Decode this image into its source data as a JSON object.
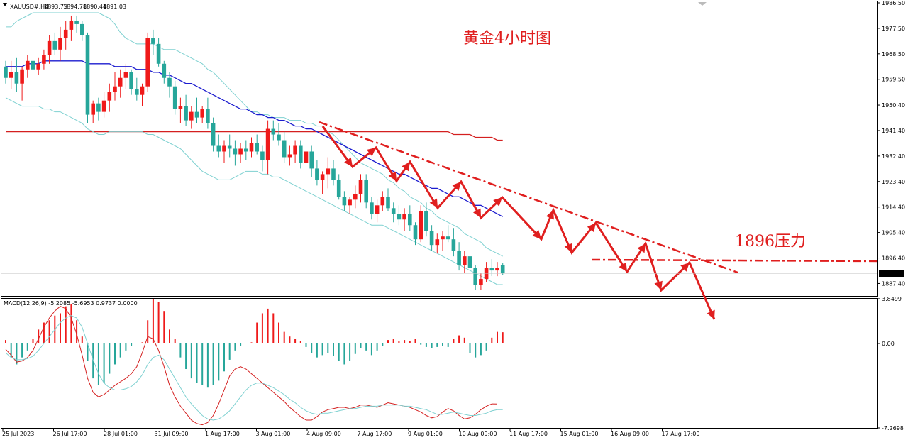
{
  "header": {
    "symbol": "XAUUSD#,H4",
    "open": "1893.79",
    "high": "1894.78",
    "low": "1890.44",
    "close": "1891.03"
  },
  "annotations": {
    "title": "黄金4小时图",
    "resistance": "1896压力"
  },
  "colors": {
    "bull": "#ef1a1a",
    "bear": "#26a69a",
    "bollinger": "#7fd1d1",
    "ma_fast": "#1c1ccf",
    "ma_slow": "#d42020",
    "annotation": "#e01f1f",
    "grid": "#c8c8c8",
    "border": "#000000",
    "price_tag_bg": "#000000",
    "price_tag_text": "#ffffff"
  },
  "chart_data": [
    {
      "type": "candlestick",
      "symbol": "XAUUSD#",
      "timeframe": "H4",
      "ylim": [
        1883,
        1987
      ],
      "y_ticks": [
        "1986.50",
        "1977.50",
        "1968.50",
        "1959.50",
        "1950.40",
        "1941.40",
        "1932.40",
        "1923.40",
        "1914.40",
        "1905.40",
        "1896.40",
        "1887.40"
      ],
      "x_ticks": [
        "25 Jul 2023",
        "26 Jul 17:00",
        "28 Jul 01:00",
        "31 Jul 09:00",
        "1 Aug 17:00",
        "3 Aug 01:00",
        "4 Aug 09:00",
        "7 Aug 17:00",
        "9 Aug 01:00",
        "10 Aug 09:00",
        "11 Aug 17:00",
        "15 Aug 01:00",
        "16 Aug 09:00",
        "17 Aug 17:00"
      ],
      "current_price": "1891.03",
      "candles": [
        [
          1964,
          1966,
          1958,
          1960
        ],
        [
          1960,
          1966,
          1956,
          1962
        ],
        [
          1962,
          1967,
          1955,
          1958
        ],
        [
          1958,
          1964,
          1952,
          1963
        ],
        [
          1963,
          1968,
          1960,
          1966
        ],
        [
          1966,
          1967,
          1961,
          1963
        ],
        [
          1963,
          1967,
          1961,
          1965
        ],
        [
          1965,
          1970,
          1963,
          1968
        ],
        [
          1968,
          1975,
          1965,
          1973
        ],
        [
          1973,
          1976,
          1968,
          1970
        ],
        [
          1970,
          1978,
          1966,
          1974
        ],
        [
          1974,
          1980,
          1970,
          1977
        ],
        [
          1977,
          1982,
          1973,
          1980
        ],
        [
          1980,
          1982,
          1976,
          1979
        ],
        [
          1979,
          1980,
          1973,
          1975
        ],
        [
          1975,
          1976,
          1944,
          1947
        ],
        [
          1947,
          1952,
          1944,
          1951
        ],
        [
          1951,
          1953,
          1945,
          1948
        ],
        [
          1948,
          1955,
          1946,
          1952
        ],
        [
          1952,
          1958,
          1948,
          1955
        ],
        [
          1955,
          1962,
          1952,
          1957
        ],
        [
          1957,
          1963,
          1953,
          1960
        ],
        [
          1960,
          1965,
          1956,
          1962
        ],
        [
          1962,
          1963,
          1954,
          1956
        ],
        [
          1956,
          1960,
          1952,
          1954
        ],
        [
          1954,
          1958,
          1950,
          1957
        ],
        [
          1957,
          1976,
          1955,
          1974
        ],
        [
          1974,
          1977,
          1968,
          1972
        ],
        [
          1972,
          1974,
          1964,
          1965
        ],
        [
          1965,
          1966,
          1958,
          1960
        ],
        [
          1960,
          1962,
          1953,
          1957
        ],
        [
          1957,
          1959,
          1947,
          1949
        ],
        [
          1949,
          1953,
          1944,
          1950
        ],
        [
          1950,
          1954,
          1943,
          1945
        ],
        [
          1945,
          1950,
          1942,
          1948
        ],
        [
          1948,
          1953,
          1944,
          1946
        ],
        [
          1946,
          1950,
          1944,
          1949
        ],
        [
          1949,
          1953,
          1942,
          1944
        ],
        [
          1944,
          1946,
          1934,
          1936
        ],
        [
          1936,
          1940,
          1932,
          1934
        ],
        [
          1934,
          1938,
          1930,
          1936
        ],
        [
          1936,
          1940,
          1932,
          1935
        ],
        [
          1935,
          1938,
          1929,
          1933
        ],
        [
          1933,
          1937,
          1930,
          1935
        ],
        [
          1935,
          1938,
          1931,
          1934
        ],
        [
          1934,
          1939,
          1932,
          1937
        ],
        [
          1937,
          1940,
          1933,
          1934
        ],
        [
          1934,
          1936,
          1927,
          1931
        ],
        [
          1931,
          1945,
          1926,
          1942
        ],
        [
          1942,
          1945,
          1938,
          1940
        ],
        [
          1940,
          1944,
          1936,
          1938
        ],
        [
          1938,
          1941,
          1930,
          1932
        ],
        [
          1932,
          1936,
          1929,
          1933
        ],
        [
          1933,
          1938,
          1930,
          1936
        ],
        [
          1936,
          1938,
          1928,
          1930
        ],
        [
          1930,
          1936,
          1927,
          1934
        ],
        [
          1934,
          1936,
          1925,
          1928
        ],
        [
          1928,
          1931,
          1922,
          1924
        ],
        [
          1924,
          1927,
          1919,
          1926
        ],
        [
          1926,
          1932,
          1921,
          1928
        ],
        [
          1928,
          1931,
          1922,
          1924
        ],
        [
          1924,
          1926,
          1917,
          1918
        ],
        [
          1918,
          1920,
          1913,
          1915
        ],
        [
          1915,
          1918,
          1912,
          1917
        ],
        [
          1917,
          1922,
          1914,
          1919
        ],
        [
          1919,
          1926,
          1916,
          1924
        ],
        [
          1924,
          1926,
          1914,
          1916
        ],
        [
          1916,
          1918,
          1910,
          1912
        ],
        [
          1912,
          1917,
          1909,
          1915
        ],
        [
          1915,
          1920,
          1913,
          1918
        ],
        [
          1918,
          1921,
          1913,
          1914
        ],
        [
          1914,
          1916,
          1909,
          1912
        ],
        [
          1912,
          1915,
          1908,
          1910
        ],
        [
          1910,
          1914,
          1906,
          1912
        ],
        [
          1912,
          1915,
          1906,
          1908
        ],
        [
          1908,
          1909,
          1901,
          1903
        ],
        [
          1903,
          1915,
          1902,
          1913
        ],
        [
          1913,
          1916,
          1904,
          1906
        ],
        [
          1906,
          1908,
          1899,
          1901
        ],
        [
          1901,
          1905,
          1898,
          1903
        ],
        [
          1903,
          1906,
          1899,
          1904
        ],
        [
          1904,
          1908,
          1902,
          1903
        ],
        [
          1903,
          1907,
          1897,
          1899
        ],
        [
          1899,
          1902,
          1892,
          1894
        ],
        [
          1894,
          1899,
          1891,
          1897
        ],
        [
          1897,
          1900,
          1891,
          1893
        ],
        [
          1893,
          1894,
          1885,
          1887
        ],
        [
          1887,
          1891,
          1885,
          1889
        ],
        [
          1889,
          1895,
          1888,
          1893
        ],
        [
          1893,
          1896,
          1890,
          1892
        ],
        [
          1892,
          1895,
          1890,
          1893
        ],
        [
          1893.79,
          1894.78,
          1890.44,
          1891.03
        ]
      ],
      "bollinger_upper": [
        1978,
        1978,
        1980,
        1981,
        1982,
        1983,
        1983,
        1983,
        1983,
        1983,
        1983,
        1983,
        1983,
        1983,
        1983,
        1983,
        1983,
        1983,
        1982,
        1981,
        1979,
        1976,
        1974,
        1973,
        1972,
        1972,
        1972,
        1972,
        1971,
        1970,
        1970,
        1970,
        1969,
        1968,
        1967,
        1966,
        1965,
        1963,
        1962,
        1960,
        1958,
        1956,
        1954,
        1952,
        1950,
        1948,
        1948,
        1947,
        1947,
        1946,
        1946,
        1946,
        1945,
        1945,
        1945,
        1944,
        1944,
        1943,
        1943,
        1941,
        1940,
        1938,
        1936,
        1934,
        1932,
        1930,
        1929,
        1928,
        1927,
        1926,
        1924,
        1923,
        1921,
        1920,
        1918,
        1917,
        1916,
        1914,
        1913,
        1911,
        1910,
        1909,
        1908,
        1907,
        1905,
        1904,
        1903,
        1902,
        1900,
        1899,
        1898,
        1897
      ],
      "bollinger_lower": [
        1953,
        1952,
        1951,
        1950,
        1950,
        1950,
        1950,
        1949,
        1949,
        1948,
        1948,
        1947,
        1946,
        1945,
        1944,
        1942,
        1941,
        1940,
        1940,
        1941,
        1941,
        1941,
        1941,
        1941,
        1941,
        1941,
        1940,
        1940,
        1939,
        1938,
        1937,
        1936,
        1935,
        1933,
        1931,
        1929,
        1927,
        1926,
        1925,
        1924,
        1924,
        1924,
        1925,
        1926,
        1927,
        1927,
        1927,
        1926,
        1926,
        1925,
        1925,
        1924,
        1923,
        1922,
        1921,
        1920,
        1919,
        1918,
        1917,
        1916,
        1915,
        1914,
        1913,
        1912,
        1911,
        1910,
        1909,
        1908,
        1908,
        1908,
        1907,
        1906,
        1905,
        1904,
        1903,
        1902,
        1901,
        1900,
        1899,
        1898,
        1897,
        1896,
        1895,
        1894,
        1893,
        1892,
        1891,
        1890,
        1889,
        1888,
        1887,
        1887
      ],
      "ma_fast": [
        1964,
        1964,
        1964,
        1964,
        1965,
        1965,
        1965,
        1966,
        1966,
        1966,
        1966,
        1966,
        1966,
        1966,
        1966,
        1965,
        1965,
        1965,
        1965,
        1965,
        1964,
        1964,
        1964,
        1964,
        1963,
        1963,
        1963,
        1962,
        1962,
        1961,
        1961,
        1960,
        1959,
        1958,
        1958,
        1957,
        1956,
        1955,
        1954,
        1953,
        1952,
        1951,
        1950,
        1949,
        1949,
        1948,
        1947,
        1947,
        1946,
        1946,
        1945,
        1945,
        1944,
        1943,
        1943,
        1942,
        1942,
        1941,
        1940,
        1939,
        1938,
        1937,
        1936,
        1935,
        1934,
        1933,
        1932,
        1931,
        1930,
        1929,
        1928,
        1927,
        1926,
        1926,
        1925,
        1924,
        1923,
        1922,
        1921,
        1921,
        1920,
        1919,
        1918,
        1918,
        1917,
        1916,
        1915,
        1915,
        1914,
        1913,
        1912,
        1911
      ],
      "ma_slow": [
        1941,
        1941,
        1941,
        1941,
        1941,
        1941,
        1941,
        1941,
        1941,
        1941,
        1941,
        1941,
        1941,
        1941,
        1941,
        1941,
        1941,
        1941,
        1941,
        1941,
        1941,
        1941,
        1941,
        1941,
        1941,
        1941,
        1941,
        1941,
        1941,
        1941,
        1941,
        1941,
        1941,
        1941,
        1941,
        1941,
        1941,
        1941,
        1941,
        1941,
        1941,
        1941,
        1941,
        1941,
        1941,
        1941,
        1941,
        1941,
        1941,
        1941,
        1941,
        1941,
        1941,
        1941,
        1941,
        1941,
        1941,
        1941,
        1941,
        1941,
        1941,
        1941,
        1941,
        1941,
        1941,
        1941,
        1941,
        1941,
        1941,
        1941,
        1941,
        1941,
        1941,
        1941,
        1941,
        1941,
        1941,
        1941,
        1941,
        1941,
        1941,
        1941,
        1940,
        1940,
        1940,
        1940,
        1939,
        1939,
        1939,
        1939,
        1938,
        1938
      ]
    },
    {
      "type": "histogram",
      "title": "MACD(12,26,9) -5.2085 -5.6953 0.9737 0.0000",
      "ylim": [
        -7.2698,
        3.8499
      ],
      "y_ticks": [
        "3.8499",
        "0.00",
        "-7.2698"
      ],
      "histogram": [
        0.3,
        -1.2,
        -1.8,
        -1.2,
        -0.6,
        0.4,
        1.2,
        1.8,
        2.0,
        2.4,
        2.6,
        3.2,
        3.4,
        2.0,
        0.6,
        -1.5,
        -3.0,
        -3.6,
        -3.4,
        -2.6,
        -1.8,
        -1.2,
        -0.6,
        -0.2,
        0,
        0.1,
        2.0,
        3.8,
        3.6,
        2.8,
        1.2,
        0.4,
        -1.2,
        -2.2,
        -3.0,
        -3.4,
        -3.6,
        -3.8,
        -3.6,
        -3.2,
        -2.4,
        -1.4,
        -0.6,
        -0.2,
        0,
        0.1,
        1.8,
        2.6,
        3.0,
        2.6,
        1.8,
        1.0,
        0.6,
        0.4,
        0.2,
        -0.3,
        -0.8,
        -1.2,
        -1.0,
        -0.8,
        -1.1,
        -1.5,
        -1.8,
        -1.5,
        -0.9,
        -0.4,
        -0.6,
        -1.0,
        -0.6,
        -0.2,
        0.3,
        0.4,
        0.2,
        0.3,
        0.2,
        0.4,
        -0.1,
        -0.3,
        -0.4,
        -0.3,
        -0.2,
        -0.3,
        0.4,
        0.7,
        0.5,
        -0.8,
        -1.2,
        -1.0,
        -0.6,
        0.5,
        1.0,
        0.97
      ],
      "macd_line": [
        -0.5,
        -1.0,
        -1.6,
        -1.5,
        -1.2,
        -0.6,
        0.4,
        1.4,
        2.2,
        2.8,
        3.2,
        3.0,
        2.2,
        0.8,
        -1.0,
        -3.0,
        -4.2,
        -4.6,
        -4.4,
        -4.0,
        -3.6,
        -3.3,
        -3.0,
        -2.6,
        -2.0,
        -0.8,
        0.6,
        0.4,
        -0.6,
        -2.0,
        -3.6,
        -4.6,
        -5.4,
        -6.0,
        -6.6,
        -6.9,
        -7.0,
        -6.8,
        -6.2,
        -5.2,
        -4.0,
        -2.8,
        -2.2,
        -2.0,
        -2.2,
        -2.6,
        -3.0,
        -3.4,
        -3.8,
        -4.2,
        -4.6,
        -5.0,
        -5.5,
        -5.9,
        -6.3,
        -6.6,
        -6.6,
        -6.3,
        -5.9,
        -5.7,
        -5.6,
        -5.5,
        -5.5,
        -5.6,
        -5.5,
        -5.3,
        -5.3,
        -5.4,
        -5.5,
        -5.3,
        -5.1,
        -5.2,
        -5.3,
        -5.4,
        -5.5,
        -5.7,
        -5.9,
        -6.2,
        -6.4,
        -6.3,
        -5.9,
        -5.6,
        -5.8,
        -6.2,
        -6.5,
        -6.4,
        -6.1,
        -5.7,
        -5.4,
        -5.2,
        -5.21
      ],
      "signal_line": [
        -0.8,
        -1.2,
        -1.4,
        -1.4,
        -1.3,
        -1.1,
        -0.6,
        0.0,
        0.6,
        1.2,
        1.8,
        2.2,
        2.4,
        2.2,
        1.4,
        0.0,
        -1.4,
        -2.6,
        -3.4,
        -3.8,
        -4.0,
        -4.0,
        -3.9,
        -3.7,
        -3.3,
        -2.7,
        -1.8,
        -1.2,
        -1.0,
        -1.4,
        -2.2,
        -3.0,
        -3.8,
        -4.6,
        -5.2,
        -5.7,
        -6.2,
        -6.5,
        -6.6,
        -6.5,
        -6.2,
        -5.8,
        -5.2,
        -4.6,
        -4.0,
        -3.6,
        -3.4,
        -3.4,
        -3.6,
        -3.8,
        -4.1,
        -4.4,
        -4.8,
        -5.1,
        -5.5,
        -5.8,
        -6.0,
        -6.1,
        -6.0,
        -6.0,
        -5.9,
        -5.8,
        -5.7,
        -5.6,
        -5.6,
        -5.5,
        -5.4,
        -5.4,
        -5.4,
        -5.3,
        -5.3,
        -5.3,
        -5.3,
        -5.4,
        -5.4,
        -5.5,
        -5.6,
        -5.7,
        -5.9,
        -6.1,
        -6.1,
        -6.0,
        -5.9,
        -6.0,
        -6.1,
        -6.2,
        -6.2,
        -6.1,
        -6.0,
        -5.8,
        -5.7,
        -5.7
      ]
    }
  ]
}
